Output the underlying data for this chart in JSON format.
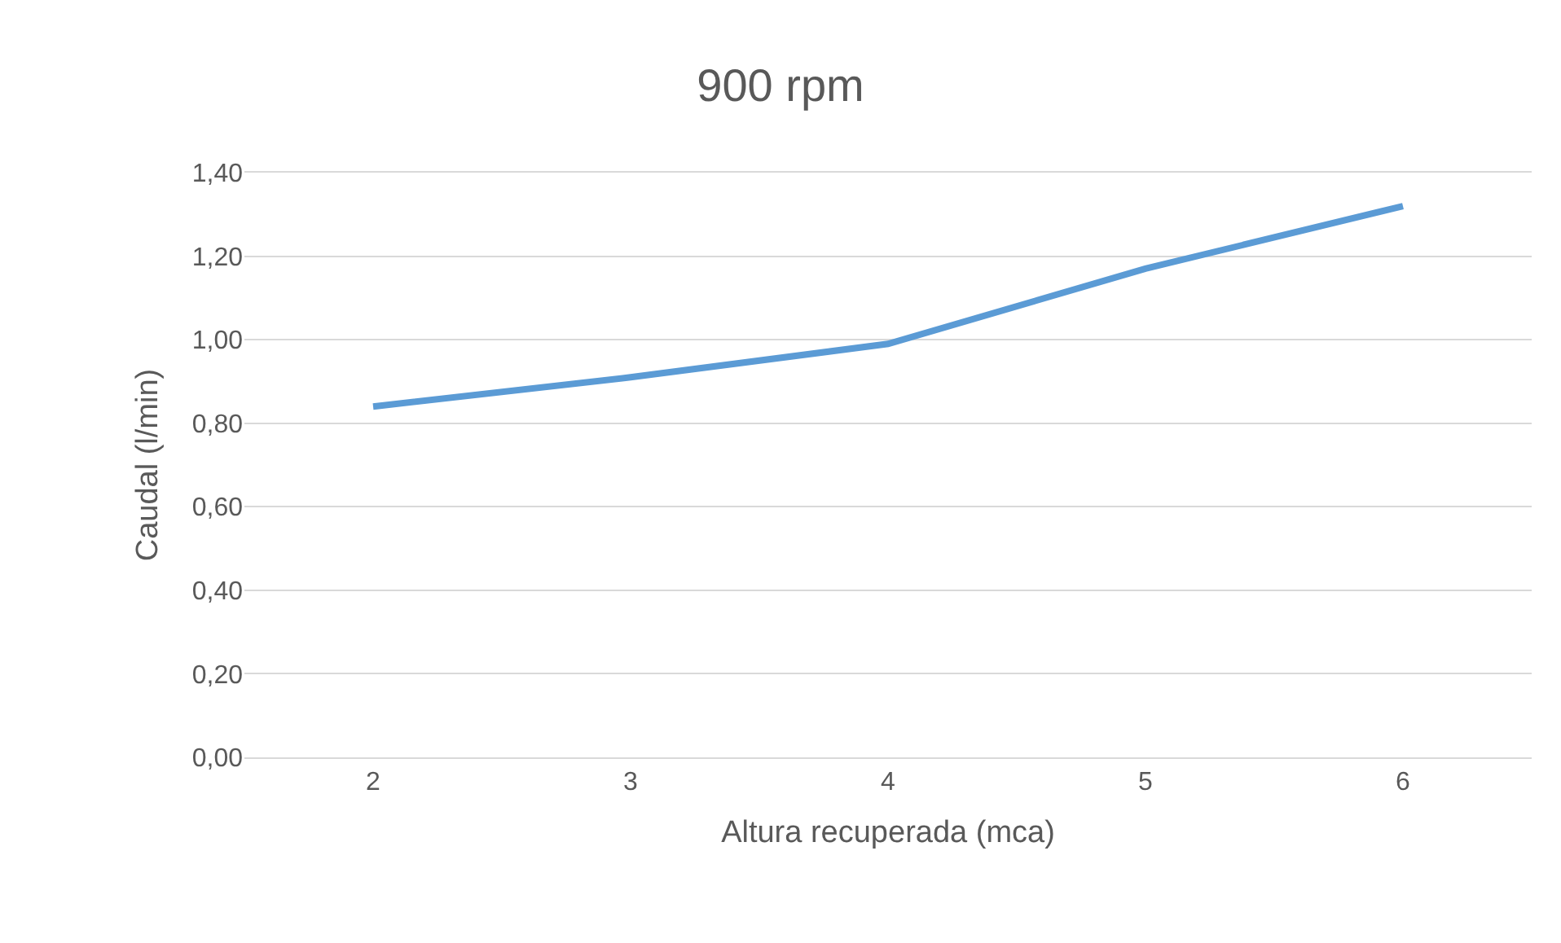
{
  "chart_data": {
    "type": "line",
    "title": "900 rpm",
    "xlabel": "Altura recuperada (mca)",
    "ylabel": "Caudal (l/min)",
    "categories": [
      "2",
      "3",
      "4",
      "5",
      "6"
    ],
    "series": [
      {
        "color": "#5b9bd5",
        "values": [
          0.84,
          0.91,
          0.99,
          1.17,
          1.32
        ]
      }
    ],
    "ylim": [
      0,
      1.4
    ],
    "yticks": [
      {
        "value": 0,
        "label": "0,00"
      },
      {
        "value": 0.2,
        "label": "0,20"
      },
      {
        "value": 0.4,
        "label": "0,40"
      },
      {
        "value": 0.6,
        "label": "0,60"
      },
      {
        "value": 0.8,
        "label": "0,80"
      },
      {
        "value": 1.0,
        "label": "1,00"
      },
      {
        "value": 1.2,
        "label": "1,20"
      },
      {
        "value": 1.4,
        "label": "1,40"
      }
    ],
    "grid": "y",
    "marker": "none",
    "line_style": "solid"
  }
}
